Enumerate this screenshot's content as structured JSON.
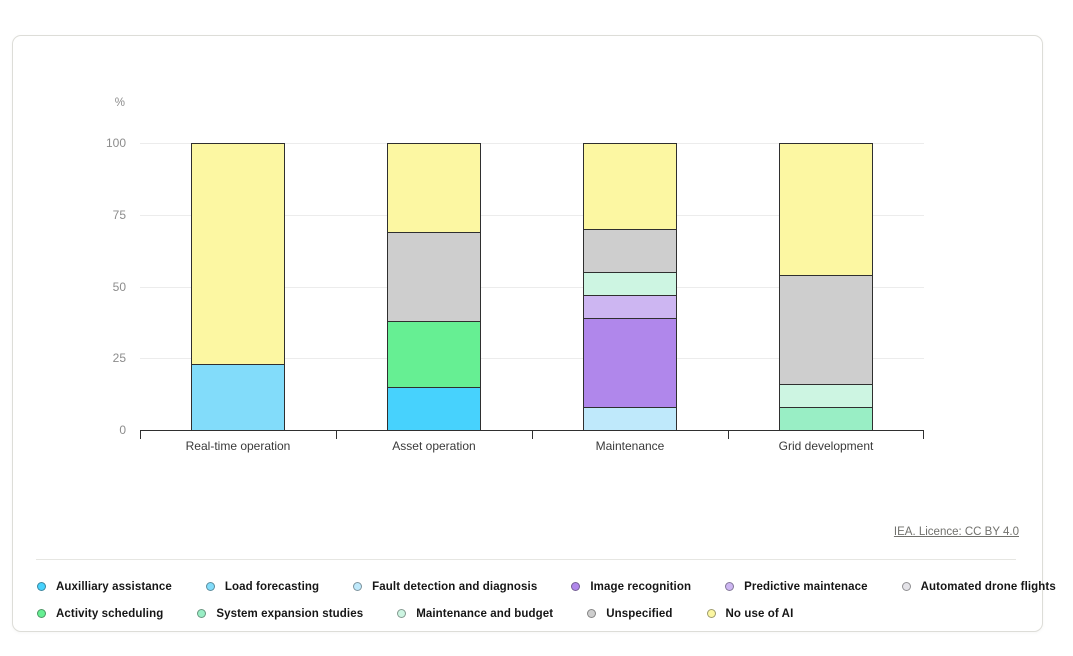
{
  "chart_data": {
    "type": "bar",
    "stacked": true,
    "ylabel_unit": "%",
    "ylim": [
      0,
      100
    ],
    "yticks": [
      0,
      25,
      50,
      75,
      100
    ],
    "grid": "horizontal",
    "legend_position": "bottom",
    "categories": [
      "Real-time operation",
      "Asset operation",
      "Maintenance",
      "Grid development"
    ],
    "series": [
      {
        "name": "Auxilliary assistance",
        "color": "#47d2fd",
        "values": [
          0,
          15,
          0,
          0
        ]
      },
      {
        "name": "Load forecasting",
        "color": "#82dcfa",
        "values": [
          23,
          0,
          0,
          0
        ]
      },
      {
        "name": "Fault detection and diagnosis",
        "color": "#bfe9fb",
        "values": [
          0,
          0,
          8,
          0
        ]
      },
      {
        "name": "Image recognition",
        "color": "#b087eb",
        "values": [
          0,
          0,
          31,
          0
        ]
      },
      {
        "name": "Predictive maintenace",
        "color": "#cdb6f2",
        "values": [
          0,
          0,
          8,
          0
        ]
      },
      {
        "name": "Automated drone flights",
        "color": "#e4e3e8",
        "values": [
          0,
          0,
          0,
          0
        ]
      },
      {
        "name": "Activity scheduling",
        "color": "#66ef93",
        "values": [
          0,
          23,
          0,
          0
        ]
      },
      {
        "name": "System expansion studies",
        "color": "#99eec5",
        "values": [
          0,
          0,
          0,
          8
        ]
      },
      {
        "name": "Maintenance and budget",
        "color": "#cdf5e2",
        "values": [
          0,
          0,
          8,
          8
        ]
      },
      {
        "name": "Unspecified",
        "color": "#cecece",
        "values": [
          0,
          31,
          15,
          38
        ]
      },
      {
        "name": "No use of AI",
        "color": "#fcf7a2",
        "values": [
          77,
          31,
          30,
          46
        ]
      }
    ]
  },
  "legend": {
    "rows": [
      [
        0,
        1,
        2,
        3,
        4,
        5
      ],
      [
        6,
        7,
        8,
        9,
        10
      ]
    ]
  },
  "source": {
    "label": "IEA. Licence: CC BY 4.0"
  }
}
